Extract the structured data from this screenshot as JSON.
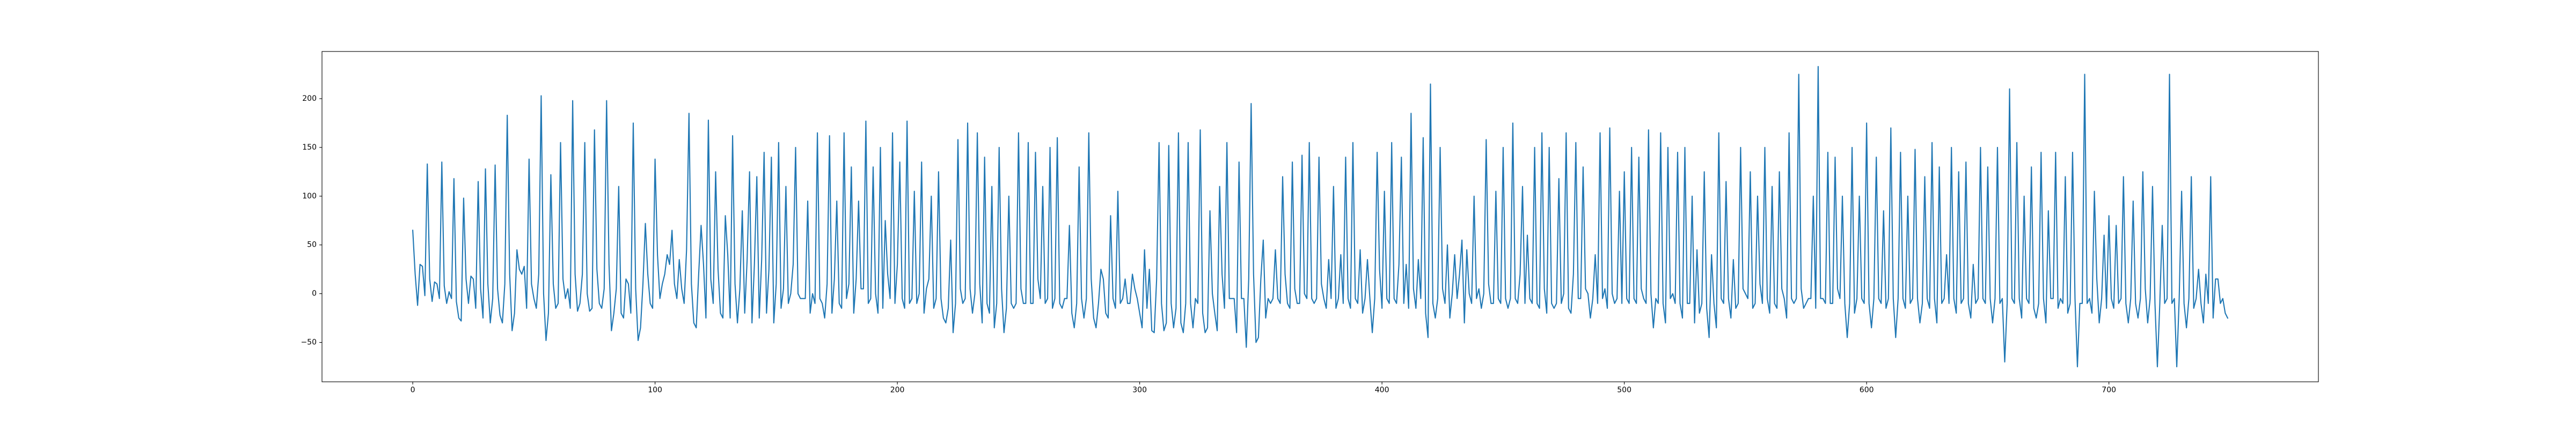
{
  "chart_data": {
    "type": "line",
    "color": "#1f77b4",
    "xlim": [
      -37.45,
      786.45
    ],
    "xticks": [
      0,
      100,
      200,
      300,
      400,
      500,
      600,
      700
    ],
    "ylim": [
      -90.4,
      248.4
    ],
    "yticks": [
      {
        "value": -50,
        "label": "−50"
      },
      0,
      50,
      100,
      150,
      200
    ],
    "grid": false,
    "values": [
      65,
      20,
      -12,
      30,
      28,
      -2,
      133,
      15,
      -8,
      12,
      10,
      -5,
      135,
      8,
      -10,
      2,
      -5,
      118,
      -8,
      -25,
      -28,
      98,
      15,
      -10,
      18,
      15,
      -15,
      115,
      5,
      -25,
      128,
      10,
      -30,
      -5,
      132,
      5,
      -22,
      -30,
      10,
      183,
      20,
      -38,
      -20,
      45,
      25,
      20,
      28,
      -15,
      138,
      10,
      -5,
      -15,
      20,
      203,
      0,
      -48,
      -20,
      122,
      10,
      -15,
      -10,
      155,
      15,
      -5,
      5,
      -15,
      198,
      20,
      -18,
      -10,
      20,
      155,
      0,
      -18,
      -15,
      168,
      25,
      -10,
      -15,
      5,
      198,
      30,
      -38,
      -20,
      5,
      110,
      -20,
      -25,
      15,
      10,
      -20,
      175,
      5,
      -48,
      -35,
      10,
      72,
      20,
      -10,
      -15,
      138,
      40,
      -5,
      10,
      20,
      40,
      30,
      65,
      10,
      -5,
      35,
      5,
      -10,
      45,
      185,
      10,
      -30,
      -35,
      20,
      70,
      30,
      -25,
      178,
      15,
      -10,
      125,
      25,
      -20,
      -25,
      80,
      40,
      -25,
      162,
      10,
      -30,
      5,
      85,
      -20,
      35,
      125,
      -30,
      30,
      120,
      -25,
      35,
      145,
      -20,
      25,
      140,
      -30,
      10,
      155,
      -15,
      5,
      110,
      -10,
      0,
      30,
      150,
      0,
      -5,
      -5,
      -5,
      95,
      -20,
      0,
      -10,
      165,
      -5,
      -10,
      -25,
      10,
      162,
      -20,
      15,
      95,
      -10,
      -15,
      165,
      -5,
      10,
      130,
      -20,
      15,
      95,
      5,
      5,
      177,
      -10,
      -5,
      130,
      0,
      -20,
      150,
      -15,
      75,
      20,
      -5,
      165,
      -10,
      30,
      135,
      -5,
      -15,
      177,
      -10,
      -5,
      105,
      -10,
      0,
      135,
      -20,
      5,
      15,
      100,
      -15,
      -5,
      125,
      -5,
      -25,
      -30,
      -15,
      55,
      -40,
      -10,
      158,
      5,
      -10,
      -5,
      175,
      5,
      -20,
      0,
      165,
      10,
      -30,
      140,
      -10,
      -20,
      110,
      -35,
      -10,
      150,
      5,
      -40,
      -15,
      100,
      -10,
      -15,
      -10,
      165,
      5,
      -10,
      -10,
      155,
      -10,
      -10,
      145,
      15,
      -5,
      110,
      -10,
      -5,
      150,
      -15,
      -5,
      160,
      -10,
      -15,
      -5,
      -5,
      70,
      -20,
      -35,
      -10,
      130,
      -5,
      -25,
      -5,
      165,
      15,
      -25,
      -35,
      -10,
      25,
      15,
      -20,
      -25,
      80,
      -5,
      -15,
      105,
      -10,
      -5,
      15,
      -10,
      -10,
      20,
      5,
      -5,
      -20,
      -35,
      45,
      -15,
      25,
      -38,
      -40,
      15,
      155,
      -10,
      -38,
      -30,
      152,
      -10,
      -35,
      -15,
      165,
      -30,
      -40,
      -10,
      155,
      -10,
      -35,
      -5,
      -10,
      168,
      -20,
      -40,
      -35,
      85,
      0,
      -20,
      -38,
      110,
      20,
      -15,
      155,
      -5,
      -5,
      -5,
      -40,
      135,
      -5,
      -5,
      -55,
      15,
      195,
      20,
      -50,
      -45,
      15,
      55,
      -25,
      -5,
      -10,
      -5,
      45,
      -5,
      -10,
      120,
      20,
      -10,
      -15,
      135,
      5,
      -10,
      -10,
      142,
      0,
      -5,
      155,
      -5,
      -10,
      -5,
      140,
      10,
      -5,
      -15,
      35,
      -5,
      110,
      -15,
      -5,
      40,
      -10,
      140,
      -5,
      -15,
      155,
      -5,
      -10,
      45,
      -20,
      -5,
      35,
      -5,
      -40,
      -5,
      145,
      25,
      -15,
      105,
      -5,
      -10,
      155,
      -5,
      -10,
      30,
      140,
      -10,
      30,
      -15,
      185,
      5,
      -15,
      35,
      -5,
      160,
      -20,
      -45,
      215,
      -10,
      -25,
      -5,
      150,
      5,
      -10,
      50,
      -25,
      0,
      40,
      -5,
      20,
      55,
      -30,
      45,
      0,
      -10,
      100,
      -5,
      5,
      -15,
      0,
      158,
      10,
      -10,
      -10,
      105,
      -5,
      -10,
      150,
      -5,
      -15,
      -5,
      175,
      -5,
      -10,
      20,
      110,
      -10,
      60,
      -5,
      -10,
      150,
      -10,
      -15,
      165,
      5,
      -20,
      150,
      -10,
      -15,
      -10,
      118,
      -10,
      0,
      165,
      -15,
      -20,
      20,
      155,
      -5,
      -5,
      130,
      5,
      0,
      -25,
      -5,
      40,
      -10,
      165,
      -5,
      5,
      -15,
      170,
      0,
      -10,
      -5,
      105,
      -10,
      125,
      -5,
      -10,
      150,
      -5,
      -10,
      140,
      5,
      -5,
      -10,
      168,
      0,
      -35,
      -5,
      -10,
      165,
      -10,
      -30,
      150,
      -5,
      0,
      -10,
      145,
      -10,
      -25,
      150,
      -10,
      -10,
      100,
      -30,
      45,
      -20,
      -10,
      125,
      -15,
      -45,
      40,
      -10,
      -35,
      165,
      -5,
      -10,
      115,
      -5,
      -25,
      35,
      -15,
      -10,
      150,
      5,
      0,
      -5,
      125,
      -15,
      -10,
      100,
      10,
      -10,
      150,
      -5,
      -20,
      110,
      -10,
      -15,
      125,
      5,
      -5,
      -25,
      165,
      -5,
      -10,
      -5,
      225,
      5,
      -15,
      -10,
      -5,
      -5,
      100,
      -15,
      233,
      -5,
      -5,
      -10,
      145,
      -10,
      -10,
      140,
      5,
      -5,
      100,
      -10,
      -45,
      -10,
      150,
      -20,
      -5,
      100,
      -5,
      -10,
      175,
      -10,
      -35,
      -5,
      140,
      -5,
      -10,
      85,
      -15,
      -5,
      170,
      -5,
      -45,
      -5,
      145,
      -5,
      -15,
      100,
      -10,
      -5,
      148,
      -5,
      -30,
      -10,
      120,
      -5,
      -15,
      155,
      -5,
      -30,
      130,
      -10,
      -5,
      40,
      -10,
      150,
      -5,
      -20,
      125,
      -10,
      -5,
      135,
      -10,
      -25,
      30,
      -10,
      -5,
      150,
      -5,
      -10,
      130,
      -5,
      -30,
      -5,
      150,
      -10,
      -5,
      -70,
      -10,
      210,
      -5,
      -10,
      155,
      -5,
      -25,
      100,
      -5,
      -10,
      130,
      -15,
      -25,
      -10,
      145,
      -5,
      -30,
      85,
      -5,
      -5,
      145,
      -15,
      -5,
      -10,
      120,
      -20,
      -10,
      145,
      -5,
      -75,
      -10,
      -10,
      225,
      -10,
      -5,
      -20,
      105,
      15,
      -30,
      -5,
      60,
      -15,
      80,
      -5,
      -15,
      70,
      -10,
      -5,
      120,
      -10,
      -30,
      -5,
      95,
      -10,
      -25,
      -5,
      125,
      5,
      -30,
      -5,
      110,
      -10,
      -75,
      -10,
      70,
      -10,
      -5,
      225,
      -10,
      -5,
      -75,
      -5,
      105,
      -10,
      -35,
      -5,
      120,
      -15,
      -5,
      25,
      -10,
      -30,
      20,
      -10,
      120,
      -25,
      15,
      15,
      -10,
      -5,
      -20,
      -25
    ]
  }
}
